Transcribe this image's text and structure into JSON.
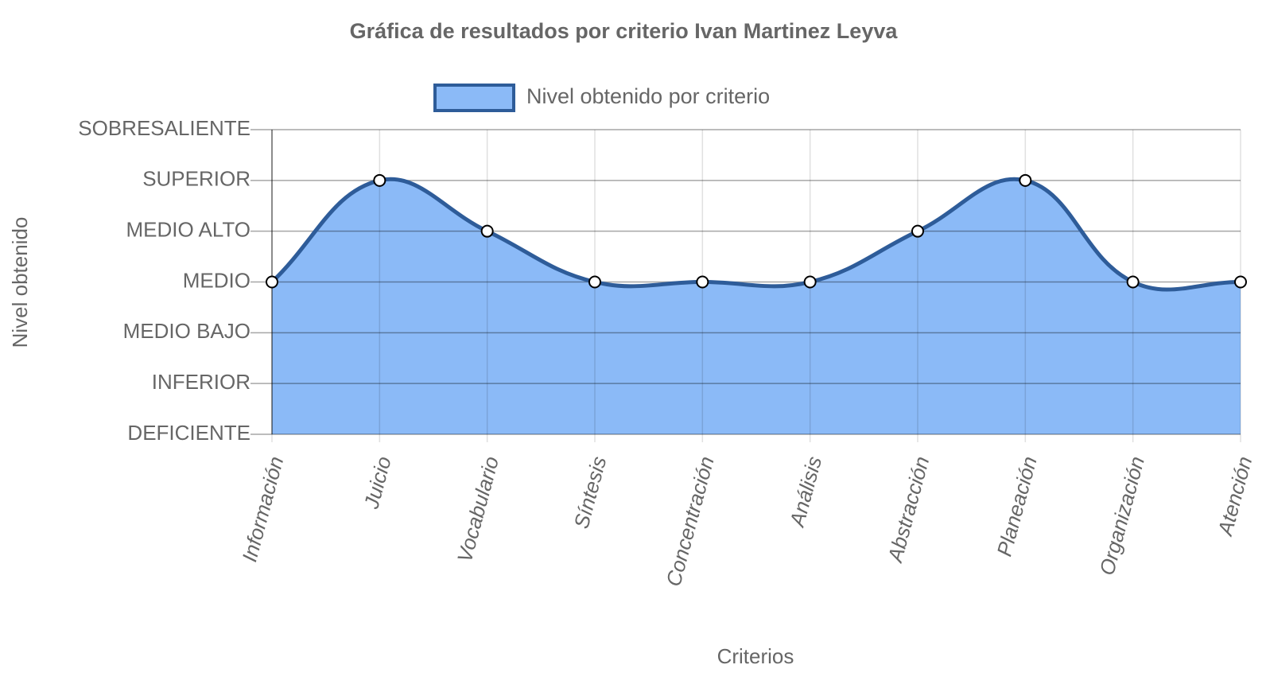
{
  "chart_data": {
    "type": "area",
    "title": "Gráfica de resultados por criterio Ivan Martinez Leyva",
    "x_label": "Criterios",
    "y_label": "Nivel obtenido",
    "categories": [
      "Información",
      "Juicio",
      "Vocabulario",
      "Síntesis",
      "Concentración",
      "Análisis",
      "Abstracción",
      "Planeación",
      "Organización",
      "Atención"
    ],
    "series": [
      {
        "name": "Nivel obtenido por criterio",
        "color": "#2e5c99",
        "fill": "#8bbaf7",
        "values": [
          4,
          6,
          5,
          4,
          4,
          4,
          5,
          6,
          4,
          4
        ]
      }
    ],
    "ylim": [
      1,
      7
    ],
    "yticks": [
      {
        "value": 1,
        "label": "DEFICIENTE"
      },
      {
        "value": 2,
        "label": "INFERIOR"
      },
      {
        "value": 3,
        "label": "MEDIO BAJO"
      },
      {
        "value": 4,
        "label": "MEDIO"
      },
      {
        "value": 5,
        "label": "MEDIO ALTO"
      },
      {
        "value": 6,
        "label": "SUPERIOR"
      },
      {
        "value": 7,
        "label": "SOBRESALIENTE"
      }
    ],
    "grid": true,
    "legend": "top"
  }
}
